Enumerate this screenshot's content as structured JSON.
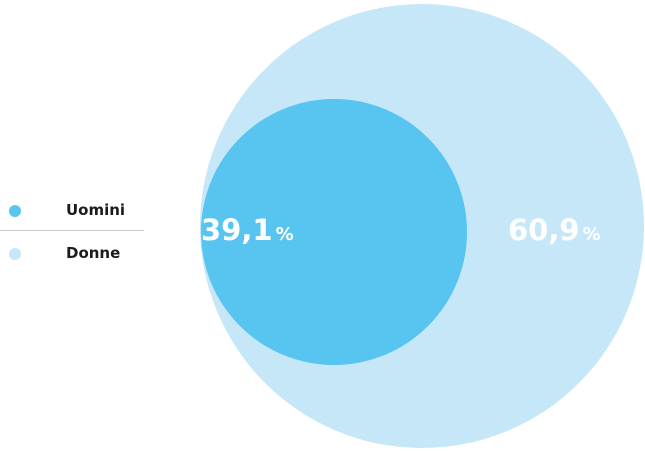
{
  "chart_data": {
    "type": "bubble",
    "series": [
      {
        "name": "Uomini",
        "value": 39.1,
        "value_label": "39,1",
        "color": "#58c4f0"
      },
      {
        "name": "Donne",
        "value": 60.9,
        "value_label": "60,9",
        "color": "#c6e7f8"
      }
    ],
    "unit": "%",
    "legend_placement": "left"
  }
}
